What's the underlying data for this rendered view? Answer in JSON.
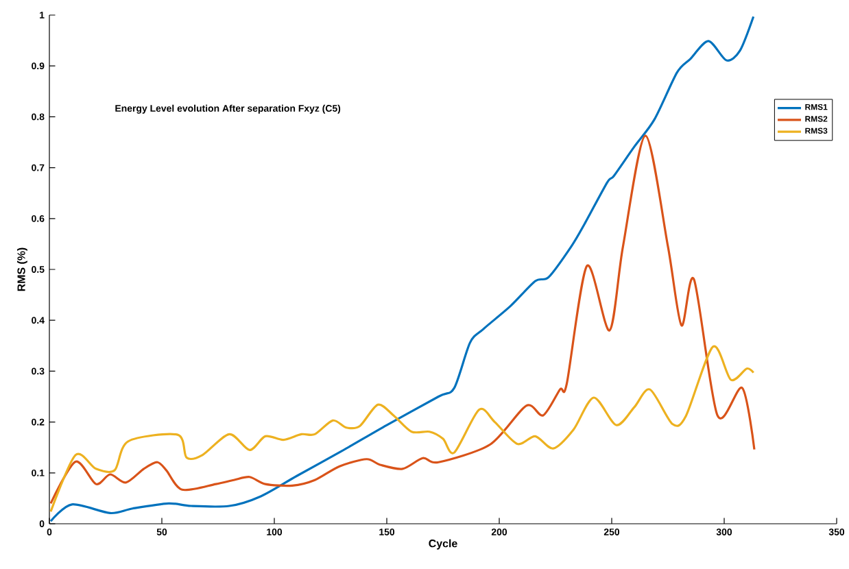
{
  "chart_data": {
    "type": "line",
    "title": "Energy Level evolution After separation Fxyz (C5)",
    "xlabel": "Cycle",
    "ylabel": "RMS (%)",
    "xlim": [
      0,
      350
    ],
    "ylim": [
      0,
      1
    ],
    "xticks": [
      0,
      50,
      100,
      150,
      200,
      250,
      300,
      350
    ],
    "yticks": [
      0,
      0.1,
      0.2,
      0.3,
      0.4,
      0.5,
      0.6,
      0.7,
      0.8,
      0.9,
      1
    ],
    "grid": false,
    "legend": "right",
    "line_style": "solid",
    "marker": "none",
    "series": [
      {
        "name": "RMS1",
        "color": "#0072bd",
        "x": [
          0.6,
          10,
          27,
          37,
          53,
          63,
          80,
          94,
          110,
          130,
          150,
          173,
          180,
          187,
          193,
          205,
          216,
          222,
          232,
          238,
          248,
          251,
          260,
          269,
          279,
          285,
          293,
          301,
          307,
          313
        ],
        "values": [
          0.005,
          0.038,
          0.021,
          0.03,
          0.04,
          0.035,
          0.035,
          0.054,
          0.094,
          0.143,
          0.194,
          0.25,
          0.267,
          0.356,
          0.383,
          0.428,
          0.477,
          0.485,
          0.545,
          0.59,
          0.671,
          0.684,
          0.741,
          0.795,
          0.887,
          0.914,
          0.949,
          0.911,
          0.93,
          0.997
        ]
      },
      {
        "name": "RMS2",
        "color": "#d95319",
        "x": [
          0.6,
          11.6,
          20.7,
          27,
          34,
          42,
          48,
          52,
          59,
          74,
          82,
          89,
          96,
          108,
          118,
          129,
          141,
          147,
          157,
          166,
          173,
          196,
          212,
          219.5,
          227,
          230,
          239,
          249,
          255,
          265,
          275,
          281,
          286.6,
          297,
          308,
          313.4
        ],
        "values": [
          0.04,
          0.122,
          0.078,
          0.097,
          0.081,
          0.108,
          0.121,
          0.105,
          0.067,
          0.078,
          0.086,
          0.092,
          0.078,
          0.075,
          0.086,
          0.113,
          0.127,
          0.116,
          0.108,
          0.129,
          0.121,
          0.156,
          0.232,
          0.213,
          0.264,
          0.275,
          0.507,
          0.38,
          0.545,
          0.763,
          0.545,
          0.39,
          0.48,
          0.213,
          0.267,
          0.146
        ]
      },
      {
        "name": "RMS3",
        "color": "#edb120",
        "x": [
          0.6,
          11.6,
          20.7,
          29,
          35,
          57,
          61,
          68,
          80,
          89,
          96,
          104,
          112,
          118,
          126,
          132,
          138,
          146,
          153,
          161,
          169,
          175,
          180,
          191,
          198,
          208,
          216,
          224,
          233,
          242,
          252,
          260,
          267,
          277,
          283,
          295,
          303,
          310,
          313
        ],
        "values": [
          0.024,
          0.135,
          0.108,
          0.105,
          0.162,
          0.175,
          0.13,
          0.135,
          0.176,
          0.145,
          0.172,
          0.165,
          0.176,
          0.176,
          0.203,
          0.189,
          0.192,
          0.234,
          0.213,
          0.181,
          0.181,
          0.167,
          0.14,
          0.224,
          0.2,
          0.157,
          0.172,
          0.148,
          0.185,
          0.248,
          0.194,
          0.229,
          0.264,
          0.196,
          0.212,
          0.348,
          0.283,
          0.305,
          0.297
        ]
      }
    ]
  }
}
